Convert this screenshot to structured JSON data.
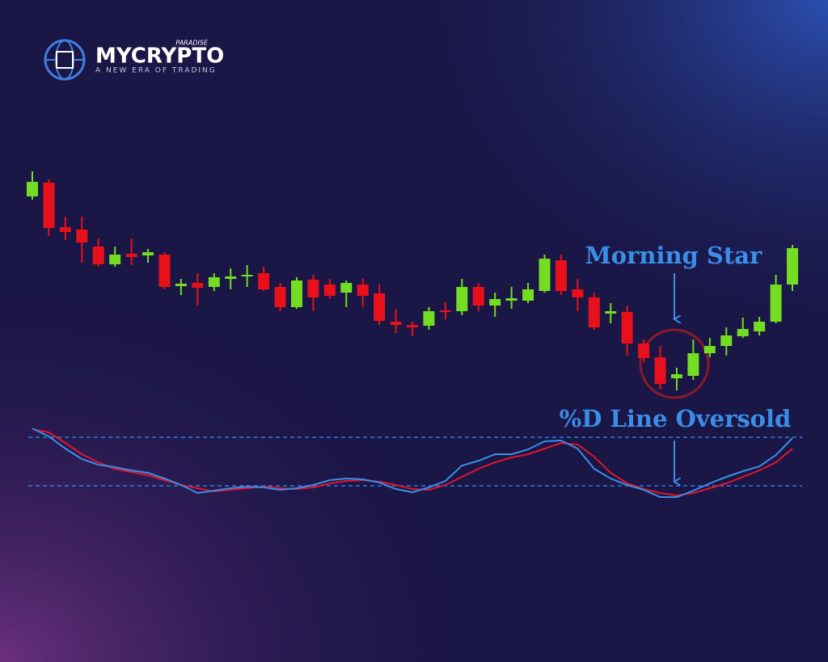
{
  "logo": {
    "name": "MYCRYPTO",
    "tag": "PARADISE",
    "slogan": "A NEW ERA OF TRADING"
  },
  "chart_data": [
    {
      "type": "candlestick",
      "annotation": "Morning Star",
      "ylim": [
        0,
        300
      ],
      "up_color": "#74dc22",
      "down_color": "#e8101a",
      "open": [
        257,
        274,
        219,
        216,
        195,
        173,
        186,
        184,
        185,
        146,
        150,
        145,
        155,
        158,
        162,
        145,
        120,
        154,
        148,
        138,
        148,
        137,
        102,
        98,
        97,
        116,
        115,
        145,
        122,
        128,
        128,
        140,
        178,
        142,
        132,
        112,
        114,
        75,
        58,
        32,
        35,
        63,
        72,
        84,
        90,
        102,
        148
      ],
      "close": [
        275,
        218,
        213,
        200,
        173,
        185,
        182,
        188,
        145,
        149,
        144,
        157,
        158,
        160,
        142,
        120,
        153,
        132,
        134,
        150,
        134,
        103,
        98,
        95,
        115,
        114,
        145,
        122,
        130,
        131,
        142,
        180,
        140,
        132,
        95,
        115,
        75,
        57,
        25,
        37,
        63,
        72,
        85,
        93,
        102,
        148,
        193
      ],
      "high": [
        288,
        278,
        232,
        232,
        205,
        195,
        205,
        192,
        188,
        155,
        162,
        162,
        168,
        172,
        170,
        150,
        157,
        160,
        155,
        153,
        155,
        148,
        118,
        102,
        120,
        126,
        155,
        150,
        138,
        145,
        150,
        185,
        185,
        155,
        138,
        125,
        122,
        80,
        72,
        45,
        80,
        82,
        95,
        107,
        108,
        160,
        197
      ],
      "low": [
        253,
        208,
        203,
        175,
        170,
        170,
        172,
        175,
        142,
        135,
        122,
        140,
        142,
        145,
        140,
        115,
        118,
        115,
        130,
        120,
        120,
        98,
        88,
        84,
        92,
        105,
        110,
        115,
        108,
        118,
        125,
        138,
        135,
        115,
        92,
        100,
        60,
        52,
        18,
        17,
        30,
        58,
        60,
        82,
        85,
        100,
        140
      ]
    },
    {
      "type": "line",
      "annotation": "%D Line Oversold",
      "ylim": [
        0,
        100
      ],
      "levels": [
        80,
        20
      ],
      "level_color": "#2f7be0",
      "series": [
        {
          "color": "#3a8ee8",
          "values": [
            91,
            81,
            66,
            53,
            46,
            43,
            39,
            36,
            29,
            21,
            11,
            14,
            17,
            19,
            18,
            15,
            17,
            21,
            27,
            29,
            28,
            24,
            16,
            12,
            18,
            26,
            45,
            51,
            59,
            59,
            65,
            75,
            76,
            66,
            41,
            29,
            21,
            15,
            6,
            6,
            14,
            23,
            31,
            38,
            44,
            58,
            79
          ]
        },
        {
          "color": "#e0162a",
          "values": [
            90,
            86,
            73,
            59,
            49,
            41,
            37,
            33,
            27,
            21,
            17,
            13,
            15,
            17,
            19,
            17,
            16,
            18,
            23,
            26,
            27,
            25,
            21,
            16,
            15,
            21,
            31,
            41,
            49,
            55,
            59,
            66,
            73,
            71,
            56,
            36,
            23,
            16,
            11,
            8,
            11,
            17,
            23,
            31,
            39,
            49,
            66
          ]
        }
      ]
    }
  ]
}
